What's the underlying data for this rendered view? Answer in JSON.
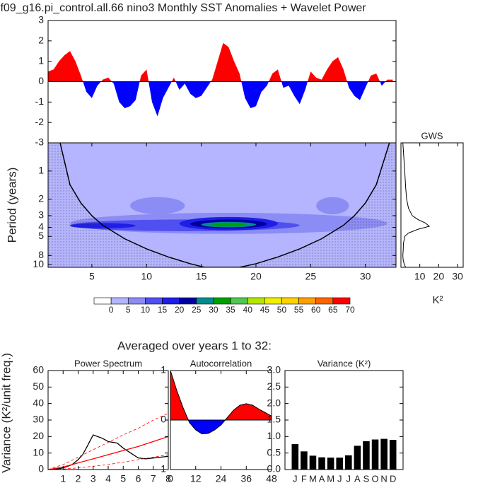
{
  "title": ".f09_g16.pi_control.all.66 nino3 Monthly SST Anomalies + Wavelet Power",
  "subtitle": "Averaged over years 1 to 32:",
  "chart_data": [
    {
      "type": "area",
      "pos_color": "#ff0000",
      "neg_color": "#0000ff",
      "x": [
        1,
        1.5,
        2,
        2.5,
        3,
        3.5,
        4,
        4.5,
        5,
        5.5,
        6,
        6.5,
        7,
        7.5,
        8,
        8.5,
        9,
        9.5,
        10,
        10.5,
        11,
        11.5,
        12,
        12.5,
        13,
        13.5,
        14,
        14.5,
        15,
        15.5,
        16,
        16.5,
        17,
        17.5,
        18,
        18.5,
        19,
        19.5,
        20,
        20.5,
        21,
        21.5,
        22,
        22.5,
        23,
        23.5,
        24,
        24.5,
        25,
        25.5,
        26,
        26.5,
        27,
        27.5,
        28,
        28.5,
        29,
        29.5,
        30,
        30.5,
        31,
        31.5,
        32,
        32.5
      ],
      "values": [
        0.5,
        0.6,
        1.0,
        1.3,
        1.5,
        1.0,
        0.3,
        -0.5,
        -0.8,
        -0.2,
        0.1,
        0.2,
        -0.1,
        -1.0,
        -1.3,
        -1.2,
        -0.9,
        0.3,
        0.6,
        -1.0,
        -1.7,
        -0.8,
        -0.3,
        0.2,
        -0.4,
        -0.1,
        -0.6,
        -0.8,
        -0.7,
        -0.3,
        0.1,
        1.0,
        1.9,
        1.7,
        1.0,
        0.4,
        -0.8,
        -1.3,
        -1.2,
        -0.5,
        -0.2,
        0.4,
        0.6,
        -0.3,
        -0.2,
        -0.7,
        -1.1,
        -0.4,
        0.5,
        0.2,
        0.1,
        0.6,
        1.0,
        1.2,
        0.6,
        -0.3,
        -0.7,
        -0.9,
        -0.3,
        0.3,
        0.4,
        -0.2,
        0.1,
        0.1
      ],
      "xlim": [
        1,
        32.8
      ],
      "ylim": [
        -3,
        3
      ],
      "yticks": [
        -3,
        -2,
        -1,
        0,
        1,
        2,
        3
      ]
    },
    {
      "type": "wavelet",
      "ylabel": "Period (years)",
      "xlim": [
        1,
        32.8
      ],
      "xticks": [
        5,
        10,
        15,
        20,
        25,
        30
      ],
      "ylim": [
        0.5,
        10.7
      ],
      "log_y": true,
      "y_inverted": true,
      "yticks": [
        1,
        2,
        3,
        4,
        5,
        8,
        10
      ],
      "background_level": 1,
      "blobs": [
        {
          "x": [
            3,
            32
          ],
          "period": [
            2.8,
            4.7
          ],
          "level": 2
        },
        {
          "x": [
            8.5,
            13.5
          ],
          "period": [
            1.9,
            2.9
          ],
          "level": 2
        },
        {
          "x": [
            25.5,
            28.5
          ],
          "period": [
            1.9,
            2.9
          ],
          "level": 2
        },
        {
          "x": [
            3,
            24
          ],
          "period": [
            3.3,
            4.4
          ],
          "level": 3
        },
        {
          "x": [
            3,
            9
          ],
          "period": [
            3.6,
            4.1
          ],
          "level": 4
        },
        {
          "x": [
            13,
            22
          ],
          "period": [
            3.1,
            4.3
          ],
          "level": 4
        },
        {
          "x": [
            14,
            21
          ],
          "period": [
            3.3,
            4.1
          ],
          "level": 5
        },
        {
          "x": [
            15,
            20
          ],
          "period": [
            3.5,
            4.0
          ],
          "level": 6
        },
        {
          "x": [
            16,
            19
          ],
          "period": [
            3.6,
            3.9
          ],
          "level": 7
        }
      ],
      "coi": {
        "x": [
          2.1,
          3,
          4,
          5,
          6,
          8,
          10,
          12,
          14,
          15.3,
          18.5,
          20,
          22,
          24,
          26,
          28,
          29,
          30,
          31,
          32.2
        ],
        "period": [
          0.5,
          1.4,
          2.2,
          3,
          3.8,
          5.3,
          6.8,
          8.3,
          9.8,
          10.7,
          10.7,
          9.8,
          8.3,
          6.8,
          5.3,
          3.8,
          3,
          2.2,
          1.4,
          0.5
        ]
      }
    },
    {
      "type": "profile",
      "title": "GWS",
      "xlabel": "K²",
      "xlim": [
        0,
        33
      ],
      "xticks": [
        10,
        20,
        30
      ],
      "ylim": [
        0.5,
        10.7
      ],
      "log_y": true,
      "y_inverted": true,
      "period": [
        0.5,
        0.7,
        1,
        1.5,
        2,
        2.5,
        3,
        3.3,
        3.6,
        3.9,
        4.2,
        4.6,
        5,
        6,
        7,
        8,
        9,
        10,
        10.7
      ],
      "values": [
        1,
        1.5,
        2,
        2.5,
        3,
        4,
        6,
        9,
        13,
        15,
        9,
        4,
        2,
        1.3,
        1.2,
        1,
        1.2,
        1.8,
        2.5
      ],
      "color": "#000000"
    },
    {
      "type": "colorbar",
      "levels": [
        0,
        5,
        10,
        15,
        20,
        25,
        30,
        35,
        40,
        45,
        50,
        55,
        60,
        65,
        70
      ],
      "colors": [
        "#ffffff",
        "#b4b4ff",
        "#8c8cf5",
        "#5050f0",
        "#1e1ee6",
        "#0000a0",
        "#008c8c",
        "#00a000",
        "#50c850",
        "#b4e600",
        "#f0f000",
        "#ffd200",
        "#ffa000",
        "#ff6400",
        "#ff0000"
      ]
    },
    {
      "type": "line",
      "title": "Power Spectrum",
      "ylabel": "Variance (K²/unit freq.)",
      "xlim": [
        0,
        8
      ],
      "xticks": [
        1,
        2,
        3,
        4,
        5,
        6,
        7,
        8
      ],
      "ylim": [
        0,
        60
      ],
      "yticks": [
        0,
        10,
        20,
        30,
        40,
        50,
        60
      ],
      "series": [
        {
          "color": "#000000",
          "dash": false,
          "x": [
            0.3,
            0.7,
            1,
            1.3,
            1.6,
            2,
            2.3,
            2.6,
            3,
            3.3,
            3.6,
            4,
            4.3,
            4.6,
            5,
            5.5,
            6,
            6.5,
            7,
            7.5,
            8
          ],
          "values": [
            0.1,
            0.5,
            1,
            2,
            3,
            6,
            9,
            14,
            21,
            20,
            19,
            17,
            16.5,
            16,
            13,
            10,
            7,
            6.5,
            7,
            7.5,
            8
          ]
        },
        {
          "color": "#ff0000",
          "dash": false,
          "x": [
            0,
            1,
            2,
            3,
            4,
            5,
            6,
            7,
            8
          ],
          "values": [
            0,
            1.5,
            4,
            6.5,
            9,
            11.5,
            14,
            17,
            20
          ]
        },
        {
          "color": "#ff0000",
          "dash": true,
          "x": [
            0,
            1,
            2,
            3,
            4,
            5,
            6,
            7,
            8
          ],
          "values": [
            0,
            3,
            7.5,
            12,
            16.5,
            21,
            25,
            30,
            34
          ]
        },
        {
          "color": "#ff0000",
          "dash": true,
          "x": [
            0,
            1,
            2,
            3,
            4,
            5,
            6,
            7,
            8
          ],
          "values": [
            0,
            0.3,
            1,
            2,
            3,
            4.5,
            6,
            7.5,
            9
          ]
        }
      ]
    },
    {
      "type": "area",
      "title": "Autocorrelation",
      "pos_color": "#ff0000",
      "neg_color": "#0000ff",
      "outline_color": "#000000",
      "x": [
        0,
        3,
        6,
        9,
        12,
        15,
        18,
        21,
        24,
        27,
        30,
        33,
        36,
        39,
        42,
        45,
        48
      ],
      "values": [
        1,
        0.6,
        0.25,
        -0.05,
        -0.2,
        -0.28,
        -0.27,
        -0.2,
        -0.1,
        0.05,
        0.2,
        0.3,
        0.33,
        0.3,
        0.22,
        0.15,
        0.08
      ],
      "xlim": [
        0,
        48
      ],
      "xticks": [
        0,
        12,
        24,
        36,
        48
      ],
      "ylim": [
        -1,
        1
      ],
      "yticks": [
        -1,
        0,
        1
      ]
    },
    {
      "type": "bar",
      "title": "Variance (K²)",
      "color": "#000000",
      "categories": [
        "J",
        "F",
        "M",
        "A",
        "M",
        "J",
        "J",
        "A",
        "S",
        "O",
        "N",
        "D"
      ],
      "values": [
        0.77,
        0.55,
        0.42,
        0.37,
        0.36,
        0.36,
        0.43,
        0.72,
        0.86,
        0.91,
        0.93,
        0.9
      ],
      "ylim": [
        0,
        3
      ],
      "yticks": [
        {
          "value": 0,
          "label": "0.0"
        },
        {
          "value": 0.5,
          "label": "0.5"
        },
        {
          "value": 1,
          "label": "1.0"
        },
        {
          "value": 1.5,
          "label": "1.5"
        },
        {
          "value": 2,
          "label": "2.0"
        },
        {
          "value": 2.5,
          "label": "2.5"
        },
        {
          "value": 3,
          "label": "3.0"
        }
      ]
    }
  ]
}
